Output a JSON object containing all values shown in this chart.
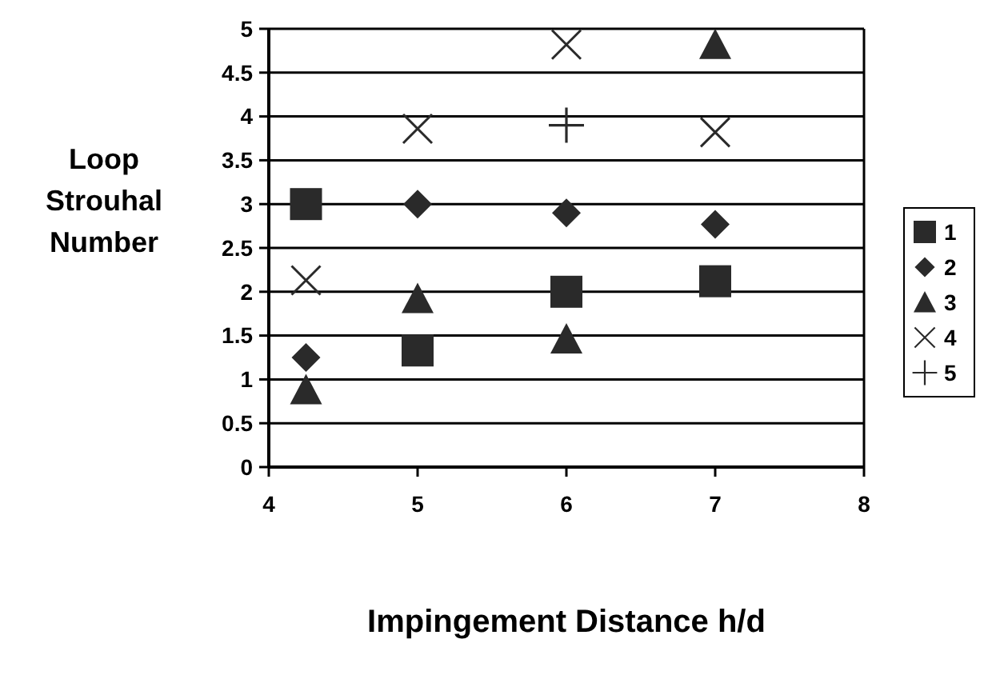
{
  "chart_data": {
    "type": "scatter",
    "xlabel": "Impingement Distance h/d",
    "ylabel": "Loop Strouhal Number",
    "xlim": [
      4,
      8
    ],
    "xticks": [
      4,
      5,
      6,
      7,
      8
    ],
    "ylim": [
      0,
      5
    ],
    "yticks": [
      0,
      0.5,
      1,
      1.5,
      2,
      2.5,
      3,
      3.5,
      4,
      4.5,
      5
    ],
    "grid": "y",
    "legend": "right",
    "series": [
      {
        "name": "1",
        "color": "#2a2a2a",
        "marker": "square",
        "x": [
          4.25,
          5,
          6,
          7
        ],
        "values": [
          3.0,
          1.33,
          2.0,
          2.12
        ]
      },
      {
        "name": "2",
        "color": "#2a2a2a",
        "marker": "diamond",
        "x": [
          4.25,
          5,
          6,
          7
        ],
        "values": [
          1.25,
          3.0,
          2.9,
          2.77
        ]
      },
      {
        "name": "3",
        "color": "#2a2a2a",
        "marker": "triangle",
        "x": [
          4.25,
          5,
          6,
          7
        ],
        "values": [
          0.88,
          1.92,
          1.46,
          4.82
        ]
      },
      {
        "name": "4",
        "color": "#2a2a2a",
        "x": [
          4.25,
          5,
          6,
          7
        ],
        "values": [
          2.13,
          3.86,
          4.82,
          3.82
        ]
      },
      {
        "name": "5",
        "color": "#2a2a2a",
        "marker": "cross",
        "x": [
          6
        ],
        "values": [
          3.9
        ]
      }
    ]
  }
}
